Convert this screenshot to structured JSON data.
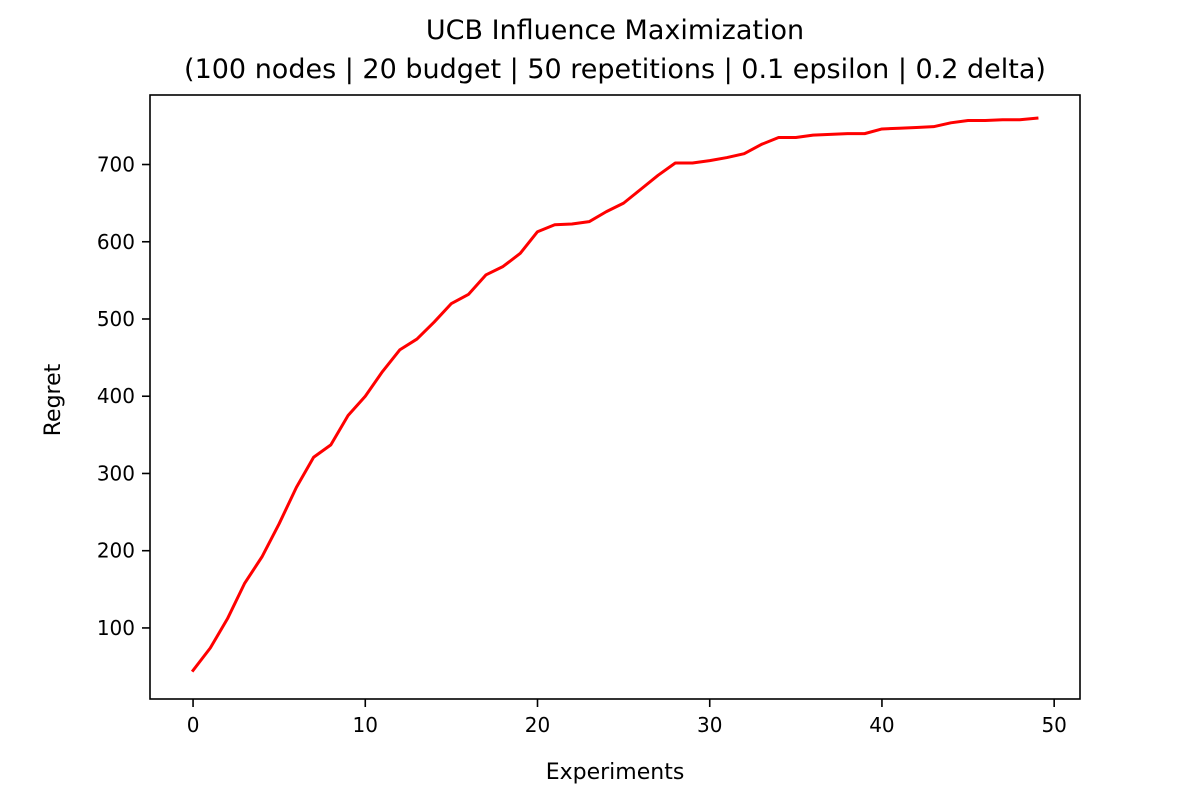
{
  "chart_data": {
    "type": "line",
    "title": "UCB Influence Maximization",
    "subtitle": "(100 nodes | 20 budget | 50 repetitions | 0.1 epsilon | 0.2 delta)",
    "xlabel": "Experiments",
    "ylabel": "Regret",
    "xlim": [
      -2.5,
      51.5
    ],
    "ylim": [
      8,
      790
    ],
    "xticks": [
      0,
      10,
      20,
      30,
      40,
      50
    ],
    "yticks": [
      100,
      200,
      300,
      400,
      500,
      600,
      700
    ],
    "grid": false,
    "series": [
      {
        "color": "#ff0000",
        "x": [
          0,
          1,
          2,
          3,
          4,
          5,
          6,
          7,
          8,
          9,
          10,
          11,
          12,
          13,
          14,
          15,
          16,
          17,
          18,
          19,
          20,
          21,
          22,
          23,
          24,
          25,
          26,
          27,
          28,
          29,
          30,
          31,
          32,
          33,
          34,
          35,
          36,
          37,
          38,
          39,
          40,
          41,
          42,
          43,
          44,
          45,
          46,
          47,
          48,
          49
        ],
        "y": [
          45,
          74,
          112,
          158,
          192,
          235,
          282,
          321,
          337,
          375,
          400,
          432,
          460,
          474,
          496,
          520,
          532,
          557,
          568,
          585,
          613,
          622,
          623,
          626,
          639,
          650,
          668,
          686,
          702,
          702,
          705,
          709,
          714,
          726,
          735,
          735,
          738,
          739,
          740,
          740,
          746,
          747,
          748,
          749,
          754,
          757,
          757,
          758,
          758,
          760
        ]
      }
    ]
  }
}
